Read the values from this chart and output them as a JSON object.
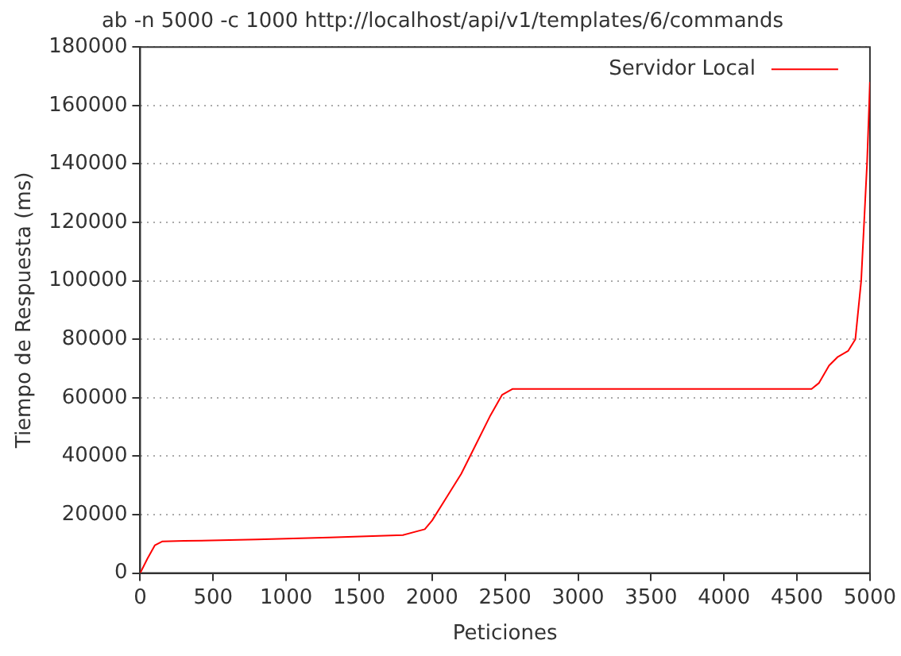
{
  "chart_data": {
    "type": "line",
    "title": "ab -n 5000 -c 1000 http://localhost/api/v1/templates/6/commands",
    "xlabel": "Peticiones",
    "ylabel": "Tiempo de Respuesta (ms)",
    "series": [
      {
        "name": "Servidor Local",
        "color": "#ff0000",
        "x": [
          0,
          50,
          100,
          150,
          300,
          800,
          1300,
          1800,
          1950,
          2000,
          2100,
          2200,
          2300,
          2400,
          2480,
          2550,
          4600,
          4650,
          4720,
          4780,
          4850,
          4900,
          4940,
          4960,
          4980,
          5000
        ],
        "values": [
          0,
          5000,
          9500,
          10800,
          11000,
          11500,
          12200,
          13000,
          15000,
          18000,
          26000,
          34000,
          44000,
          54000,
          61000,
          63000,
          63000,
          65000,
          71000,
          74000,
          76000,
          80000,
          100000,
          120000,
          140000,
          168000
        ]
      }
    ],
    "xlim": [
      0,
      5000
    ],
    "xticks": [
      0,
      500,
      1000,
      1500,
      2000,
      2500,
      3000,
      3500,
      4000,
      4500,
      5000
    ],
    "ylim": [
      0,
      180000
    ],
    "yticks": [
      0,
      20000,
      40000,
      60000,
      80000,
      100000,
      120000,
      140000,
      160000,
      180000
    ],
    "grid": "y",
    "legend": "top right",
    "marker": "none",
    "line_style": "solid"
  }
}
